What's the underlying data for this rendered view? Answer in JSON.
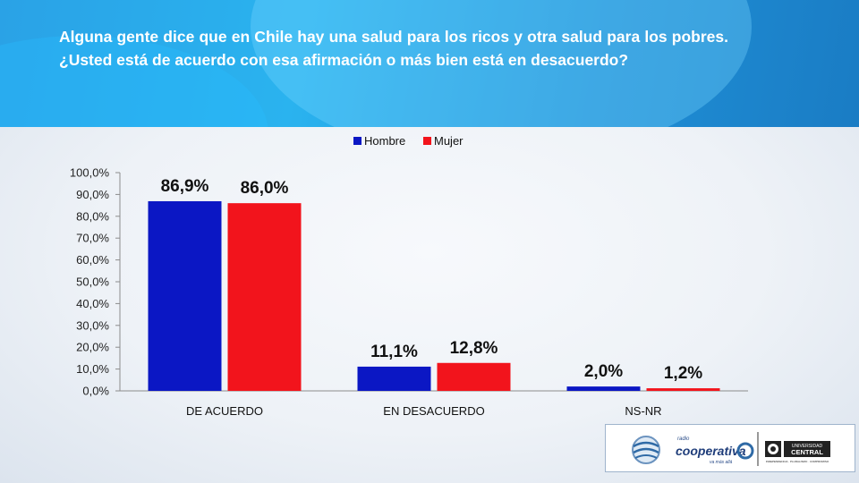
{
  "question": "Alguna gente dice que en Chile hay una salud para los ricos y otra salud para los pobres. ¿Usted está de acuerdo con esa afirmación o más bien está en desacuerdo?",
  "colors": {
    "hombre": "#0b17c4",
    "mujer": "#f2141c",
    "header": "#2aa2e6",
    "axis": "#8c8c8c"
  },
  "chart_data": {
    "type": "bar",
    "categories": [
      "DE ACUERDO",
      "EN DESACUERDO",
      "NS-NR"
    ],
    "series": [
      {
        "name": "Hombre",
        "values": [
          86.9,
          11.1,
          2.0
        ],
        "labels": [
          "86,9%",
          "11,1%",
          "2,0%"
        ]
      },
      {
        "name": "Mujer",
        "values": [
          86.0,
          12.8,
          1.2
        ],
        "labels": [
          "86,0%",
          "12,8%",
          "1,2%"
        ]
      }
    ],
    "yticks": [
      "0,0%",
      "10,0%",
      "20,0%",
      "30,0%",
      "40,0%",
      "50,0%",
      "60,0%",
      "70,0%",
      "80,0%",
      "90,0%",
      "100,0%"
    ],
    "ylim": [
      0,
      100
    ],
    "grid": false,
    "legend": "top-center"
  },
  "logos": {
    "radio": "radio",
    "cooperativa": "cooperativa",
    "cooperativa_tagline": "va más allá",
    "universidad": "UNIVERSIDAD",
    "central": "CENTRAL",
    "universidad_tagline": "INDEPENDENCIA · PLURALISMO · COMPROMISO"
  }
}
